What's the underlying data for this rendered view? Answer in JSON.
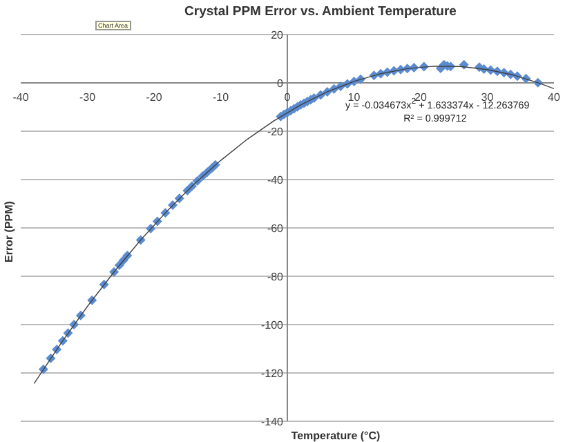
{
  "chart_data": {
    "type": "scatter",
    "title": "Crystal PPM Error vs. Ambient Temperature",
    "xlabel": "Temperature (°C)",
    "ylabel": "Error (PPM)",
    "xlim": [
      -40,
      40
    ],
    "xticks": [
      -40,
      -30,
      -20,
      -10,
      0,
      10,
      20,
      30,
      40
    ],
    "ylim": [
      -140,
      20
    ],
    "yticks": [
      -140,
      -120,
      -100,
      -80,
      -60,
      -40,
      -20,
      0,
      20
    ],
    "grid": "y",
    "legend": false,
    "marker": "diamond",
    "annotations": [
      "Chart Area",
      "y = -0.034673x$^{2}$ + 1.633374x - 12.263769",
      "R² = 0.999712"
    ],
    "series": [
      {
        "color": "#5b8bd0",
        "x": [
          -36.6,
          -35.5,
          -34.6,
          -33.7,
          -32.9,
          -32.0,
          -31.0,
          -29.3,
          -27.5,
          -26.0,
          -25.2,
          -24.6,
          -24.0,
          -22.0,
          -20.5,
          -19.5,
          -18.3,
          -17.2,
          -16.2,
          -15.0,
          -14.3,
          -13.5,
          -12.7,
          -12.0,
          -11.3,
          -10.8,
          -1.0,
          -0.5,
          0,
          0.5,
          1.0,
          1.5,
          2.0,
          2.5,
          3.0,
          3.5,
          4.0,
          5.0,
          6.0,
          7.0,
          8.0,
          9.0,
          10.0,
          11.0,
          13.0,
          14.0,
          15.0,
          16.0,
          17.0,
          18.0,
          19.0,
          20.5,
          23.0,
          23.5,
          24.0,
          24.5,
          26.5,
          28.8,
          29.5,
          30.5,
          31.5,
          32.5,
          33.5,
          34.5,
          35.8,
          37.6
        ],
        "values": [
          -118.5,
          -113.9,
          -110.3,
          -106.7,
          -103.5,
          -100.0,
          -96.2,
          -89.9,
          -83.4,
          -78.2,
          -75.4,
          -73.4,
          -71.4,
          -65.0,
          -60.3,
          -57.3,
          -53.8,
          -50.6,
          -47.8,
          -44.6,
          -42.7,
          -40.6,
          -38.6,
          -36.9,
          -35.2,
          -33.9,
          -13.9,
          -13.1,
          -12.3,
          -11.5,
          -10.7,
          -9.9,
          -9.1,
          -8.4,
          -7.7,
          -7.0,
          -6.3,
          -5.0,
          -3.7,
          -2.5,
          -1.4,
          -0.4,
          0.6,
          1.5,
          3.1,
          3.8,
          4.4,
          5.0,
          5.5,
          5.9,
          6.3,
          6.7,
          6.0,
          7.5,
          7.0,
          6.8,
          7.5,
          6.5,
          5.7,
          5.3,
          4.8,
          4.2,
          3.5,
          2.8,
          1.8,
          0.1
        ]
      },
      {
        "type": "line",
        "color": "#404040",
        "marker": "none",
        "x": [
          -38,
          -34,
          -30,
          -26,
          -22,
          -18,
          -14,
          -10,
          -6,
          -2,
          2,
          6,
          10,
          14,
          18,
          22,
          26,
          30,
          34,
          38,
          40
        ],
        "values": [
          -124.4,
          -107.9,
          -92.5,
          -78.2,
          -65.0,
          -52.9,
          -41.9,
          -32.1,
          -23.3,
          -15.7,
          -9.1,
          -3.7,
          0.6,
          3.8,
          5.9,
          6.9,
          6.8,
          5.5,
          3.2,
          -0.3,
          -2.4
        ]
      }
    ]
  }
}
